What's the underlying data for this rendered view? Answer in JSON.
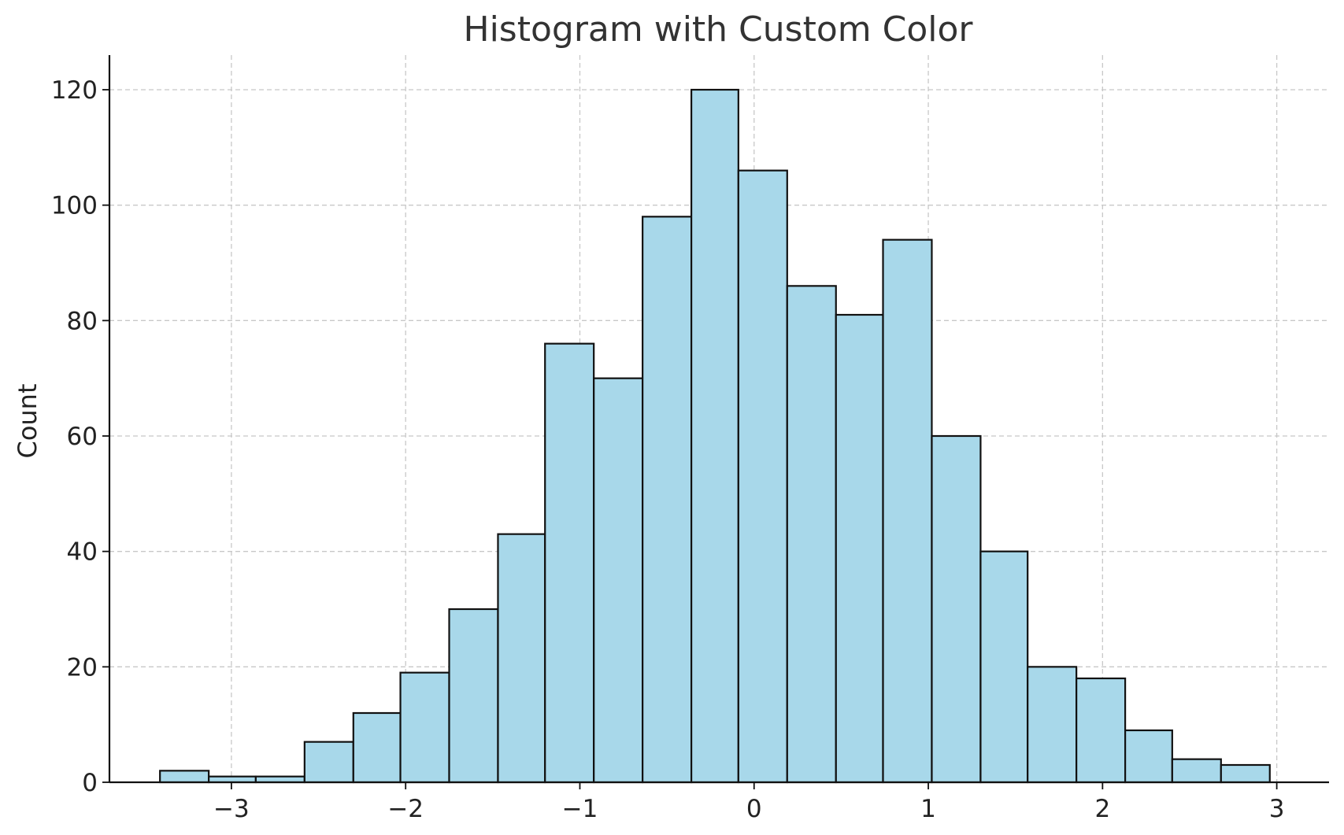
{
  "chart_data": {
    "type": "bar",
    "title": "Histogram with Custom Color",
    "xlabel": "",
    "ylabel": "Count",
    "bar_color": "#a8d8ea",
    "edge_color": "#111111",
    "grid": true,
    "xlim": [
      -3.7,
      3.3
    ],
    "ylim": [
      0,
      126
    ],
    "xticks": [
      {
        "value": -3,
        "label": "−3"
      },
      {
        "value": -2,
        "label": "−2"
      },
      {
        "value": -1,
        "label": "−1"
      },
      {
        "value": 0,
        "label": "0"
      },
      {
        "value": 1,
        "label": "1"
      },
      {
        "value": 2,
        "label": "2"
      },
      {
        "value": 3,
        "label": "3"
      }
    ],
    "yticks": [
      {
        "value": 0,
        "label": "0"
      },
      {
        "value": 20,
        "label": "20"
      },
      {
        "value": 40,
        "label": "40"
      },
      {
        "value": 60,
        "label": "60"
      },
      {
        "value": 80,
        "label": "80"
      },
      {
        "value": 100,
        "label": "100"
      },
      {
        "value": 120,
        "label": "120"
      }
    ],
    "bin_edges": [
      -3.41,
      -3.13,
      -2.86,
      -2.58,
      -2.3,
      -2.03,
      -1.75,
      -1.47,
      -1.2,
      -0.92,
      -0.64,
      -0.36,
      -0.09,
      0.19,
      0.47,
      0.74,
      1.02,
      1.3,
      1.57,
      1.85,
      2.13,
      2.4,
      2.68,
      2.96
    ],
    "counts": [
      2,
      1,
      1,
      7,
      12,
      19,
      30,
      43,
      76,
      70,
      98,
      120,
      106,
      86,
      81,
      94,
      60,
      40,
      20,
      18,
      9,
      4,
      3
    ]
  }
}
